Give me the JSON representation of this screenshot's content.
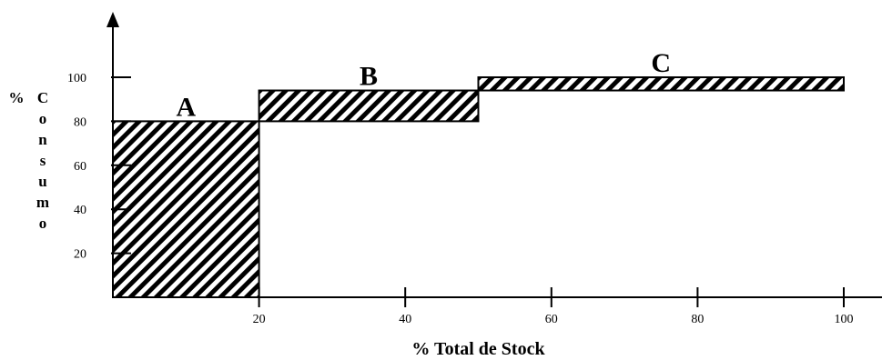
{
  "chart_data": {
    "type": "bar",
    "title": "",
    "xlabel": "% Total de Stock",
    "ylabel_lines": [
      "%",
      "C",
      "o",
      "n",
      "s",
      "u",
      "m",
      "o"
    ],
    "xlim": [
      0,
      100
    ],
    "ylim": [
      0,
      100
    ],
    "x_ticks": [
      20,
      40,
      60,
      80,
      100
    ],
    "y_ticks": [
      20,
      40,
      60,
      80,
      100
    ],
    "grid": false,
    "fill_pattern": "diagonal-hatch",
    "zones": [
      {
        "label": "A",
        "x_start": 0,
        "x_end": 20,
        "y_low": 0,
        "y_high": 80
      },
      {
        "label": "B",
        "x_start": 20,
        "x_end": 50,
        "y_low": 80,
        "y_high": 94
      },
      {
        "label": "C",
        "x_start": 50,
        "x_end": 100,
        "y_low": 94,
        "y_high": 100
      }
    ]
  }
}
